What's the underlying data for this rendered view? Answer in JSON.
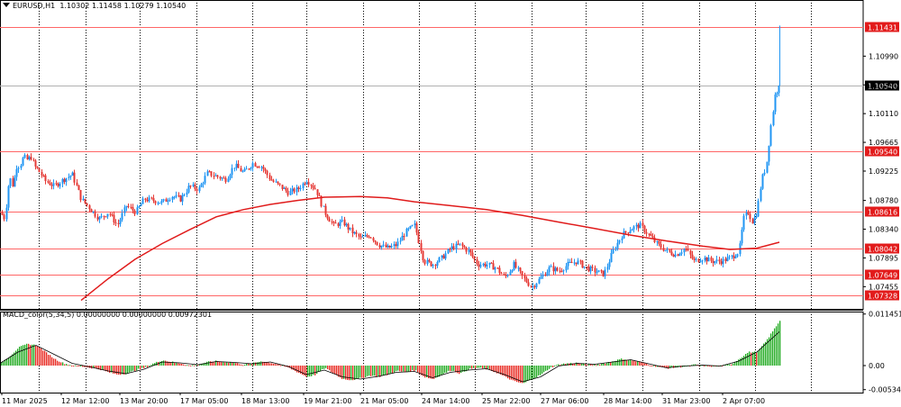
{
  "header": {
    "symbol": "EURUSD,H1",
    "ohlc": "1.10302 1.11458 1.10279 1.10540",
    "indicator": "MACD_color(5,34,5) 0.00000000 0.00000000 0.00972301"
  },
  "colors": {
    "bull": "#2196f3",
    "bear": "#e53935",
    "ma": "#e01b1b",
    "hline": "#ff6666",
    "hist_up": "#1faa1f",
    "hist_down": "#e8271f",
    "signal": "#000000",
    "grid": "#000000"
  },
  "chart_data": [
    {
      "type": "candlestick",
      "title": "EURUSD,H1",
      "ylim": [
        1.0712,
        1.1185
      ],
      "x_axis_labels": [
        "11 Mar 2025",
        "12 Mar 12:00",
        "13 Mar 20:00",
        "17 Mar 05:00",
        "18 Mar 13:00",
        "19 Mar 21:00",
        "21 Mar 05:00",
        "24 Mar 14:00",
        "25 Mar 22:00",
        "27 Mar 06:00",
        "28 Mar 14:00",
        "31 Mar 23:00",
        "2 Apr 07:00"
      ],
      "y_ticks": [
        1.0746,
        1.079,
        1.0834,
        1.0878,
        1.0923,
        1.0967,
        1.1011,
        1.1055,
        1.1099
      ],
      "y_tick_labels": [
        "1.07455",
        "1.07895",
        "1.08340",
        "1.08780",
        "1.09225",
        "1.09665",
        "1.10110",
        "1.10540",
        "1.10990"
      ],
      "price_levels": [
        {
          "value": 1.11431,
          "label": "1.11431"
        },
        {
          "value": 1.0954,
          "label": "1.09540"
        },
        {
          "value": 1.08616,
          "label": "1.08616"
        },
        {
          "value": 1.08042,
          "label": "1.08042"
        },
        {
          "value": 1.07649,
          "label": "1.07649"
        },
        {
          "value": 1.07328,
          "label": "1.07328"
        }
      ],
      "current_price": {
        "value": 1.1054,
        "label": "1.10540"
      },
      "close_path": {
        "x": [
          0,
          5,
          10,
          14,
          18,
          22,
          26,
          30,
          34,
          38,
          42,
          50,
          60,
          70,
          80,
          90,
          100,
          110,
          120,
          130,
          140,
          150,
          160,
          170,
          180,
          190,
          200,
          210,
          220,
          230,
          240,
          250,
          260,
          270,
          280,
          290,
          300,
          310,
          320,
          330,
          340,
          350,
          360,
          370,
          380,
          390,
          400,
          410,
          420,
          430,
          440,
          450,
          460,
          470,
          480,
          490,
          500,
          510,
          520,
          530,
          540,
          550,
          560,
          570,
          580,
          590,
          600,
          610,
          620,
          630,
          640,
          650,
          660,
          670,
          680,
          690,
          700,
          710,
          720,
          730,
          740,
          750,
          760,
          770,
          780,
          790,
          800,
          810,
          815,
          820,
          825,
          830,
          835,
          840,
          845,
          850,
          855,
          860,
          865
        ],
        "y": [
          1.086,
          1.085,
          1.0915,
          1.09,
          1.093,
          1.0932,
          1.0945,
          1.094,
          1.0945,
          1.093,
          1.0925,
          1.0908,
          1.09,
          1.091,
          1.0918,
          1.088,
          1.0865,
          1.085,
          1.086,
          1.084,
          1.087,
          1.086,
          1.088,
          1.0878,
          1.0875,
          1.0885,
          1.088,
          1.09,
          1.0895,
          1.092,
          1.0915,
          1.091,
          1.0932,
          1.092,
          1.0935,
          1.093,
          1.091,
          1.09,
          1.089,
          1.0895,
          1.091,
          1.0895,
          1.086,
          1.084,
          1.0845,
          1.083,
          1.082,
          1.0825,
          1.081,
          1.0805,
          1.081,
          1.083,
          1.084,
          1.0785,
          1.078,
          1.079,
          1.0805,
          1.081,
          1.08,
          1.078,
          1.078,
          1.0775,
          1.076,
          1.078,
          1.076,
          1.0745,
          1.076,
          1.0775,
          1.077,
          1.078,
          1.0785,
          1.0775,
          1.077,
          1.0765,
          1.08,
          1.0825,
          1.0835,
          1.084,
          1.0825,
          1.081,
          1.08,
          1.0795,
          1.0805,
          1.0785,
          1.079,
          1.0785,
          1.0785,
          1.079,
          1.0795,
          1.08,
          1.085,
          1.086,
          1.0845,
          1.086,
          1.091,
          1.093,
          1.099,
          1.104,
          1.1054
        ]
      },
      "series": [
        {
          "name": "",
          "type": "moving_average",
          "x": [
            90,
            120,
            150,
            180,
            210,
            240,
            270,
            300,
            330,
            360,
            400,
            430,
            460,
            500,
            540,
            580,
            620,
            660,
            700,
            740,
            780,
            810,
            840,
            865
          ],
          "y": [
            1.0725,
            1.0758,
            1.0788,
            1.0812,
            1.0833,
            1.0853,
            1.0864,
            1.0872,
            1.0878,
            1.0883,
            1.0884,
            1.0882,
            1.0876,
            1.087,
            1.0864,
            1.0855,
            1.0845,
            1.0835,
            1.0825,
            1.0816,
            1.0808,
            1.0803,
            1.0805,
            1.0814
          ]
        }
      ]
    },
    {
      "type": "histogram",
      "title": "MACD_color(5,34,5) 0.00000000 0.00000000 0.00972301",
      "ylim": [
        -0.006,
        0.012
      ],
      "y_ticks": [
        0.011451,
        0.0,
        -0.005343
      ],
      "y_tick_labels": [
        "0.0114513",
        "0.00",
        "-0.0053437"
      ],
      "histogram": {
        "x": [
          0,
          10,
          20,
          30,
          40,
          50,
          60,
          70,
          80,
          90,
          100,
          110,
          120,
          130,
          140,
          150,
          160,
          170,
          180,
          190,
          200,
          210,
          220,
          230,
          240,
          250,
          260,
          270,
          280,
          290,
          300,
          310,
          320,
          330,
          340,
          350,
          360,
          370,
          380,
          390,
          400,
          410,
          420,
          430,
          440,
          450,
          460,
          470,
          480,
          490,
          500,
          510,
          520,
          530,
          540,
          550,
          560,
          570,
          580,
          590,
          600,
          610,
          620,
          630,
          640,
          650,
          660,
          670,
          680,
          690,
          700,
          710,
          720,
          730,
          740,
          750,
          760,
          770,
          780,
          790,
          800,
          810,
          820,
          830,
          840,
          850,
          860,
          865
        ],
        "y": [
          0.0005,
          0.002,
          0.004,
          0.0048,
          0.0045,
          0.003,
          0.0015,
          0.0005,
          0.0,
          -0.0002,
          -0.0005,
          -0.0008,
          -0.0015,
          -0.002,
          -0.0018,
          -0.001,
          -0.0005,
          0.0005,
          0.0012,
          0.0008,
          0.0005,
          0.0,
          0.0003,
          0.0008,
          0.001,
          0.0008,
          0.0006,
          0.0002,
          0.0005,
          0.001,
          0.0006,
          0.0002,
          -0.0005,
          -0.0015,
          -0.0025,
          -0.002,
          -0.0005,
          -0.0018,
          -0.003,
          -0.0032,
          -0.0028,
          -0.0022,
          -0.0025,
          -0.002,
          -0.0012,
          -0.0015,
          -0.001,
          -0.0025,
          -0.003,
          -0.002,
          -0.001,
          -0.0018,
          -0.0008,
          -0.0005,
          -0.0008,
          -0.0015,
          -0.0025,
          -0.0035,
          -0.004,
          -0.003,
          -0.002,
          -0.0005,
          0.0003,
          0.0005,
          0.0006,
          0.0003,
          0.0002,
          0.0005,
          0.001,
          0.0015,
          0.0012,
          0.0008,
          0.0002,
          -0.0003,
          -0.0006,
          -0.0004,
          -0.0002,
          0.0002,
          0.0,
          -0.0002,
          0.0,
          0.0002,
          0.0015,
          0.003,
          0.003,
          0.0055,
          0.0085,
          0.01
        ]
      },
      "signal": {
        "x": [
          0,
          20,
          40,
          60,
          80,
          100,
          120,
          140,
          160,
          180,
          200,
          220,
          240,
          260,
          280,
          300,
          320,
          340,
          360,
          380,
          400,
          420,
          440,
          460,
          480,
          500,
          520,
          540,
          560,
          580,
          600,
          620,
          640,
          660,
          680,
          700,
          720,
          740,
          760,
          780,
          800,
          820,
          840,
          865
        ],
        "y": [
          0.0005,
          0.003,
          0.0045,
          0.0025,
          0.0005,
          -0.0003,
          -0.0012,
          -0.0018,
          -0.0008,
          0.0008,
          0.0006,
          0.0002,
          0.0009,
          0.0007,
          0.0004,
          0.0008,
          -0.0002,
          -0.002,
          -0.001,
          -0.0025,
          -0.003,
          -0.0024,
          -0.0015,
          -0.0013,
          -0.0027,
          -0.0015,
          -0.001,
          -0.0007,
          -0.002,
          -0.0036,
          -0.0025,
          -0.0001,
          0.0005,
          0.0003,
          0.0008,
          0.0013,
          0.0004,
          -0.0005,
          -0.0001,
          0.0001,
          -0.0001,
          0.001,
          0.003,
          0.0075
        ]
      }
    }
  ]
}
